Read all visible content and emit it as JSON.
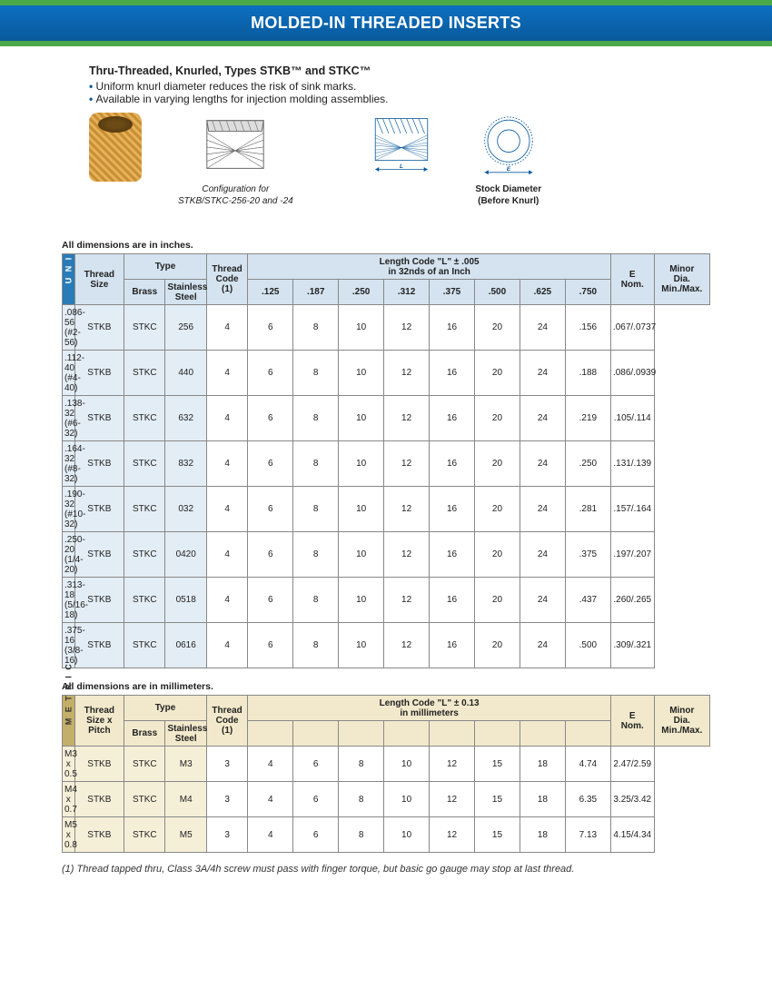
{
  "banner_title": "MOLDED-IN THREADED INSERTS",
  "section_title": "Thru-Threaded, Knurled, Types STKB™ and STKC™",
  "bullets": [
    "Uniform knurl diameter reduces the risk of sink marks.",
    "Available in varying lengths for injection molding assemblies."
  ],
  "fig2_caption1": "Configuration for",
  "fig2_caption2": "STKB/STKC-256-20 and -24",
  "fig4_caption1": "Stock Diameter",
  "fig4_caption2": "(Before Knurl)",
  "note_imperial": "All dimensions are in inches.",
  "note_metric": "All dimensions are in millimeters.",
  "footnote": "(1) Thread tapped thru, Class 3A/4h screw must pass with finger torque, but basic go gauge may stop at last thread.",
  "headers": {
    "thread_size": "Thread\nSize",
    "thread_size_pitch": "Thread\nSize x\nPitch",
    "type": "Type",
    "brass": "Brass",
    "stainless": "Stainless\nSteel",
    "thread_code": "Thread\nCode\n(1)",
    "len_title_in": "Length Code \"L\" ± .005\nin 32nds of an Inch",
    "len_title_mm": "Length Code \"L\" ± 0.13\nin millimeters",
    "e_nom": "E\nNom.",
    "minor": "Minor\nDia.\nMin./Max.",
    "len_in": [
      ".125",
      ".187",
      ".250",
      ".312",
      ".375",
      ".500",
      ".625",
      ".750"
    ],
    "len_mm": [
      "",
      "",
      "",
      "",
      "",
      "",
      "",
      ""
    ]
  },
  "sidebar_unified": "U N I F I E D",
  "sidebar_metric": "M E T R I C",
  "unified_rows": [
    {
      "size": ".086-56\n(#2-56)",
      "brass": "STKB",
      "ss": "STKC",
      "code": "256",
      "l": [
        "4",
        "6",
        "8",
        "10",
        "12",
        "16",
        "20",
        "24"
      ],
      "e": ".156",
      "minor": ".067/.0737"
    },
    {
      "size": ".112-40\n(#4-40)",
      "brass": "STKB",
      "ss": "STKC",
      "code": "440",
      "l": [
        "4",
        "6",
        "8",
        "10",
        "12",
        "16",
        "20",
        "24"
      ],
      "e": ".188",
      "minor": ".086/.0939"
    },
    {
      "size": ".138-32\n(#6-32)",
      "brass": "STKB",
      "ss": "STKC",
      "code": "632",
      "l": [
        "4",
        "6",
        "8",
        "10",
        "12",
        "16",
        "20",
        "24"
      ],
      "e": ".219",
      "minor": ".105/.114"
    },
    {
      "size": ".164-32\n(#8-32)",
      "brass": "STKB",
      "ss": "STKC",
      "code": "832",
      "l": [
        "4",
        "6",
        "8",
        "10",
        "12",
        "16",
        "20",
        "24"
      ],
      "e": ".250",
      "minor": ".131/.139"
    },
    {
      "size": ".190-32\n(#10-32)",
      "brass": "STKB",
      "ss": "STKC",
      "code": "032",
      "l": [
        "4",
        "6",
        "8",
        "10",
        "12",
        "16",
        "20",
        "24"
      ],
      "e": ".281",
      "minor": ".157/.164"
    },
    {
      "size": ".250-20\n(1/4-20)",
      "brass": "STKB",
      "ss": "STKC",
      "code": "0420",
      "l": [
        "4",
        "6",
        "8",
        "10",
        "12",
        "16",
        "20",
        "24"
      ],
      "e": ".375",
      "minor": ".197/.207"
    },
    {
      "size": ".313-18\n(5/16-18)",
      "brass": "STKB",
      "ss": "STKC",
      "code": "0518",
      "l": [
        "4",
        "6",
        "8",
        "10",
        "12",
        "16",
        "20",
        "24"
      ],
      "e": ".437",
      "minor": ".260/.265"
    },
    {
      "size": ".375-16\n(3/8-16)",
      "brass": "STKB",
      "ss": "STKC",
      "code": "0616",
      "l": [
        "4",
        "6",
        "8",
        "10",
        "12",
        "16",
        "20",
        "24"
      ],
      "e": ".500",
      "minor": ".309/.321"
    }
  ],
  "metric_rows": [
    {
      "size": "M3 x 0.5",
      "brass": "STKB",
      "ss": "STKC",
      "code": "M3",
      "l": [
        "3",
        "4",
        "6",
        "8",
        "10",
        "12",
        "15",
        "18"
      ],
      "e": "4.74",
      "minor": "2.47/2.59"
    },
    {
      "size": "M4 x 0.7",
      "brass": "STKB",
      "ss": "STKC",
      "code": "M4",
      "l": [
        "3",
        "4",
        "6",
        "8",
        "10",
        "12",
        "15",
        "18"
      ],
      "e": "6.35",
      "minor": "3.25/3.42"
    },
    {
      "size": "M5 x 0.8",
      "brass": "STKB",
      "ss": "STKC",
      "code": "M5",
      "l": [
        "3",
        "4",
        "6",
        "8",
        "10",
        "12",
        "15",
        "18"
      ],
      "e": "7.13",
      "minor": "4.15/4.34"
    }
  ],
  "colors": {
    "banner": "#0b6fc0",
    "band": "#4aa84a",
    "th_unified": "#d4e3ef",
    "th_metric": "#f2e9cc",
    "side_unified": "#2a7cb8",
    "side_metric": "#c4af6a"
  }
}
